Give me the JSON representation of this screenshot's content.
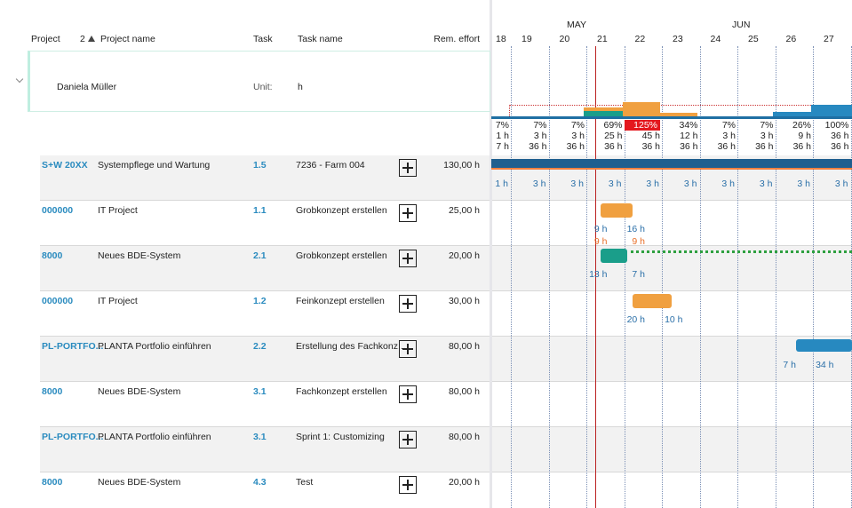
{
  "header": {
    "columns": [
      "Project",
      "Project name",
      "Task",
      "Task name",
      "Rem. effort"
    ],
    "sort_index": "2"
  },
  "resource": {
    "name": "Daniela Müller",
    "unit_label": "Unit:",
    "unit": "h"
  },
  "timeline": {
    "months": [
      "MAY",
      "JUN"
    ],
    "days": [
      "18",
      "19",
      "20",
      "21",
      "22",
      "23",
      "24",
      "25",
      "26",
      "27"
    ]
  },
  "capacity": {
    "percent": [
      "7%",
      "7%",
      "7%",
      "69%",
      "125%",
      "34%",
      "7%",
      "7%",
      "26%",
      "100%"
    ],
    "planned": [
      "1 h",
      "3 h",
      "3 h",
      "25 h",
      "45 h",
      "12 h",
      "3 h",
      "3 h",
      "9 h",
      "36 h"
    ],
    "available": [
      "7 h",
      "36 h",
      "36 h",
      "36 h",
      "36 h",
      "36 h",
      "36 h",
      "36 h",
      "36 h",
      "36 h"
    ]
  },
  "rows": [
    {
      "project": "S+W 20XX",
      "project_name": "Systempflege und Wartung",
      "task": "1.5",
      "task_name": "7236 - Farm 004",
      "rem_effort": "130,00 h",
      "gantt": [
        "1 h",
        "3 h",
        "3 h",
        "3 h",
        "3 h",
        "3 h",
        "3 h",
        "3 h",
        "3 h",
        "3 h"
      ]
    },
    {
      "project": "000000",
      "project_name": "IT Project",
      "task": "1.1",
      "task_name": "Grobkonzept erstellen",
      "rem_effort": "25,00 h",
      "gantt": [
        null,
        null,
        null,
        "9 h",
        "16 h",
        null,
        null,
        null,
        null,
        null
      ],
      "gantt2": [
        null,
        null,
        null,
        "9 h",
        "9 h",
        null,
        null,
        null,
        null,
        null
      ]
    },
    {
      "project": "8000",
      "project_name": "Neues BDE-System",
      "task": "2.1",
      "task_name": "Grobkonzept erstellen",
      "rem_effort": "20,00 h",
      "gantt": [
        null,
        null,
        null,
        "13 h",
        "7 h",
        null,
        null,
        null,
        null,
        null
      ]
    },
    {
      "project": "000000",
      "project_name": "IT Project",
      "task": "1.2",
      "task_name": "Feinkonzept erstellen",
      "rem_effort": "30,00 h",
      "gantt": [
        null,
        null,
        null,
        null,
        "20 h",
        "10 h",
        null,
        null,
        null,
        null
      ]
    },
    {
      "project": "PL-PORTFO...",
      "project_name": "PLANTA Portfolio einführen",
      "task": "2.2",
      "task_name": "Erstellung des Fachkonz...",
      "rem_effort": "80,00 h",
      "gantt": [
        null,
        null,
        null,
        null,
        null,
        null,
        null,
        null,
        "7 h",
        "34 h"
      ]
    },
    {
      "project": "8000",
      "project_name": "Neues BDE-System",
      "task": "3.1",
      "task_name": "Fachkonzept erstellen",
      "rem_effort": "80,00 h"
    },
    {
      "project": "PL-PORTFO...",
      "project_name": "PLANTA Portfolio einführen",
      "task": "3.1",
      "task_name": "Sprint 1: Customizing",
      "rem_effort": "80,00 h"
    },
    {
      "project": "8000",
      "project_name": "Neues BDE-System",
      "task": "4.3",
      "task_name": "Test",
      "rem_effort": "20,00 h"
    }
  ]
}
